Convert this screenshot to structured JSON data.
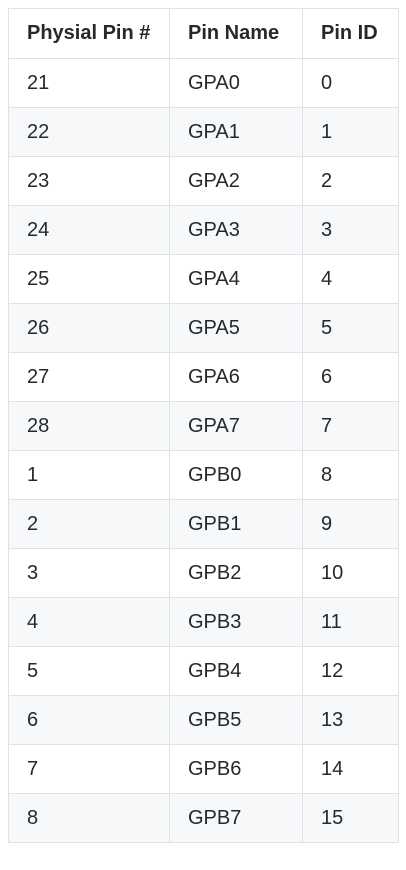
{
  "table": {
    "headers": [
      "Physial Pin #",
      "Pin Name",
      "Pin ID"
    ],
    "rows": [
      [
        "21",
        "GPA0",
        "0"
      ],
      [
        "22",
        "GPA1",
        "1"
      ],
      [
        "23",
        "GPA2",
        "2"
      ],
      [
        "24",
        "GPA3",
        "3"
      ],
      [
        "25",
        "GPA4",
        "4"
      ],
      [
        "26",
        "GPA5",
        "5"
      ],
      [
        "27",
        "GPA6",
        "6"
      ],
      [
        "28",
        "GPA7",
        "7"
      ],
      [
        "1",
        "GPB0",
        "8"
      ],
      [
        "2",
        "GPB1",
        "9"
      ],
      [
        "3",
        "GPB2",
        "10"
      ],
      [
        "4",
        "GPB3",
        "11"
      ],
      [
        "5",
        "GPB4",
        "12"
      ],
      [
        "6",
        "GPB5",
        "13"
      ],
      [
        "7",
        "GPB6",
        "14"
      ],
      [
        "8",
        "GPB7",
        "15"
      ]
    ]
  }
}
